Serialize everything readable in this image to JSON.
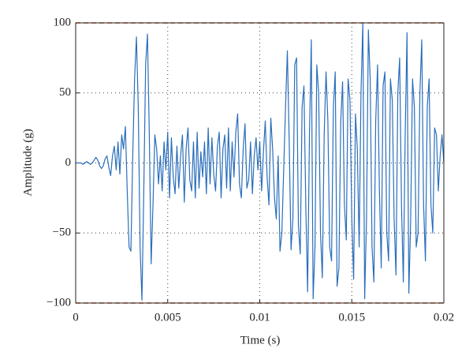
{
  "chart_data": {
    "type": "line",
    "xlabel": "Time (s)",
    "ylabel": "Amplitude (g)",
    "xlim": [
      0,
      0.02
    ],
    "ylim": [
      -100,
      100
    ],
    "xticks": [
      0,
      0.005,
      0.01,
      0.015,
      0.02
    ],
    "yticks": [
      {
        "value": -100,
        "label": "−100"
      },
      {
        "value": -50,
        "label": "−50"
      },
      0,
      50,
      100
    ],
    "grid": true,
    "hlines": {
      "values": [
        100,
        -100
      ],
      "color": "#d95319"
    },
    "x": [
      0,
      0.0001,
      0.0002,
      0.0003,
      0.0004,
      0.0005,
      0.0006,
      0.0007,
      0.0008,
      0.0009,
      0.001,
      0.0011,
      0.0012,
      0.0013,
      0.0014,
      0.0015,
      0.0016,
      0.0017,
      0.0018,
      0.0019,
      0.002,
      0.0021,
      0.0022,
      0.0023,
      0.0024,
      0.0025,
      0.0026,
      0.0027,
      0.0028,
      0.0029,
      0.003,
      0.0031,
      0.0032,
      0.0033,
      0.0034,
      0.0035,
      0.0036,
      0.0037,
      0.0038,
      0.0039,
      0.004,
      0.0041,
      0.0042,
      0.0043,
      0.0044,
      0.0045,
      0.0046,
      0.0047,
      0.0048,
      0.0049,
      0.005,
      0.0051,
      0.0052,
      0.0053,
      0.0054,
      0.0055,
      0.0056,
      0.0057,
      0.0058,
      0.0059,
      0.006,
      0.0061,
      0.0062,
      0.0063,
      0.0064,
      0.0065,
      0.0066,
      0.0067,
      0.0068,
      0.0069,
      0.007,
      0.0071,
      0.0072,
      0.0073,
      0.0074,
      0.0075,
      0.0076,
      0.0077,
      0.0078,
      0.0079,
      0.008,
      0.0081,
      0.0082,
      0.0083,
      0.0084,
      0.0085,
      0.0086,
      0.0087,
      0.0088,
      0.0089,
      0.009,
      0.0091,
      0.0092,
      0.0093,
      0.0094,
      0.0095,
      0.0096,
      0.0097,
      0.0098,
      0.0099,
      0.01,
      0.0101,
      0.0102,
      0.0103,
      0.0104,
      0.0105,
      0.0106,
      0.0107,
      0.0108,
      0.0109,
      0.011,
      0.0111,
      0.0112,
      0.0113,
      0.0114,
      0.0115,
      0.0116,
      0.0117,
      0.0118,
      0.0119,
      0.012,
      0.0121,
      0.0122,
      0.0123,
      0.0124,
      0.0125,
      0.0126,
      0.0127,
      0.0128,
      0.0129,
      0.013,
      0.0131,
      0.0132,
      0.0133,
      0.0134,
      0.0135,
      0.0136,
      0.0137,
      0.0138,
      0.0139,
      0.014,
      0.0141,
      0.0142,
      0.0143,
      0.0144,
      0.0145,
      0.0146,
      0.0147,
      0.0148,
      0.0149,
      0.015,
      0.0151,
      0.0152,
      0.0153,
      0.0154,
      0.0155,
      0.0156,
      0.0157,
      0.0158,
      0.0159,
      0.016,
      0.0161,
      0.0162,
      0.0163,
      0.0164,
      0.0165,
      0.0166,
      0.0167,
      0.0168,
      0.0169,
      0.017,
      0.0171,
      0.0172,
      0.0173,
      0.0174,
      0.0175,
      0.0176,
      0.0177,
      0.0178,
      0.0179,
      0.018,
      0.0181,
      0.0182,
      0.0183,
      0.0184,
      0.0185,
      0.0186,
      0.0187,
      0.0188,
      0.0189,
      0.019,
      0.0191,
      0.0192,
      0.0193,
      0.0194,
      0.0195,
      0.0196,
      0.0197,
      0.0198,
      0.0199,
      0.02
    ],
    "series": [
      {
        "color": "#2a6ebb",
        "values": [
          0,
          0,
          0,
          0,
          -1,
          0,
          1,
          0,
          -1,
          0,
          2,
          4,
          2,
          -2,
          -4,
          -2,
          3,
          5,
          -3,
          -9,
          5,
          12,
          -5,
          15,
          -8,
          20,
          10,
          26,
          -20,
          -60,
          -63,
          5,
          60,
          90,
          40,
          -60,
          -98,
          -20,
          70,
          92,
          20,
          -72,
          -30,
          20,
          10,
          -15,
          5,
          -20,
          15,
          -5,
          22,
          -25,
          18,
          -10,
          -22,
          12,
          -18,
          5,
          20,
          -28,
          10,
          25,
          -12,
          -20,
          15,
          -25,
          22,
          -18,
          8,
          -10,
          15,
          -22,
          25,
          -15,
          18,
          -8,
          -20,
          12,
          22,
          -25,
          10,
          20,
          -18,
          25,
          -20,
          15,
          -10,
          22,
          35,
          -15,
          -25,
          10,
          28,
          -18,
          -12,
          15,
          -22,
          5,
          18,
          -5,
          15,
          -20,
          8,
          30,
          -10,
          -30,
          32,
          10,
          -25,
          -40,
          5,
          -63,
          -50,
          -5,
          40,
          80,
          15,
          -62,
          -40,
          70,
          75,
          -45,
          -65,
          40,
          55,
          -30,
          -92,
          20,
          88,
          -97,
          -60,
          70,
          50,
          -50,
          -82,
          20,
          65,
          30,
          -60,
          -70,
          40,
          65,
          -88,
          -75,
          30,
          58,
          -30,
          -55,
          60,
          45,
          -40,
          -83,
          35,
          10,
          -60,
          50,
          100,
          -97,
          -40,
          95,
          60,
          -60,
          -85,
          30,
          70,
          -20,
          -75,
          55,
          65,
          -50,
          -70,
          60,
          45,
          -40,
          -80,
          50,
          75,
          -30,
          -85,
          20,
          93,
          -93,
          -40,
          60,
          40,
          -60,
          -50,
          50,
          88,
          -30,
          -70,
          40,
          60,
          -30,
          -50,
          25,
          20,
          -20,
          5,
          20,
          0
        ]
      }
    ]
  }
}
